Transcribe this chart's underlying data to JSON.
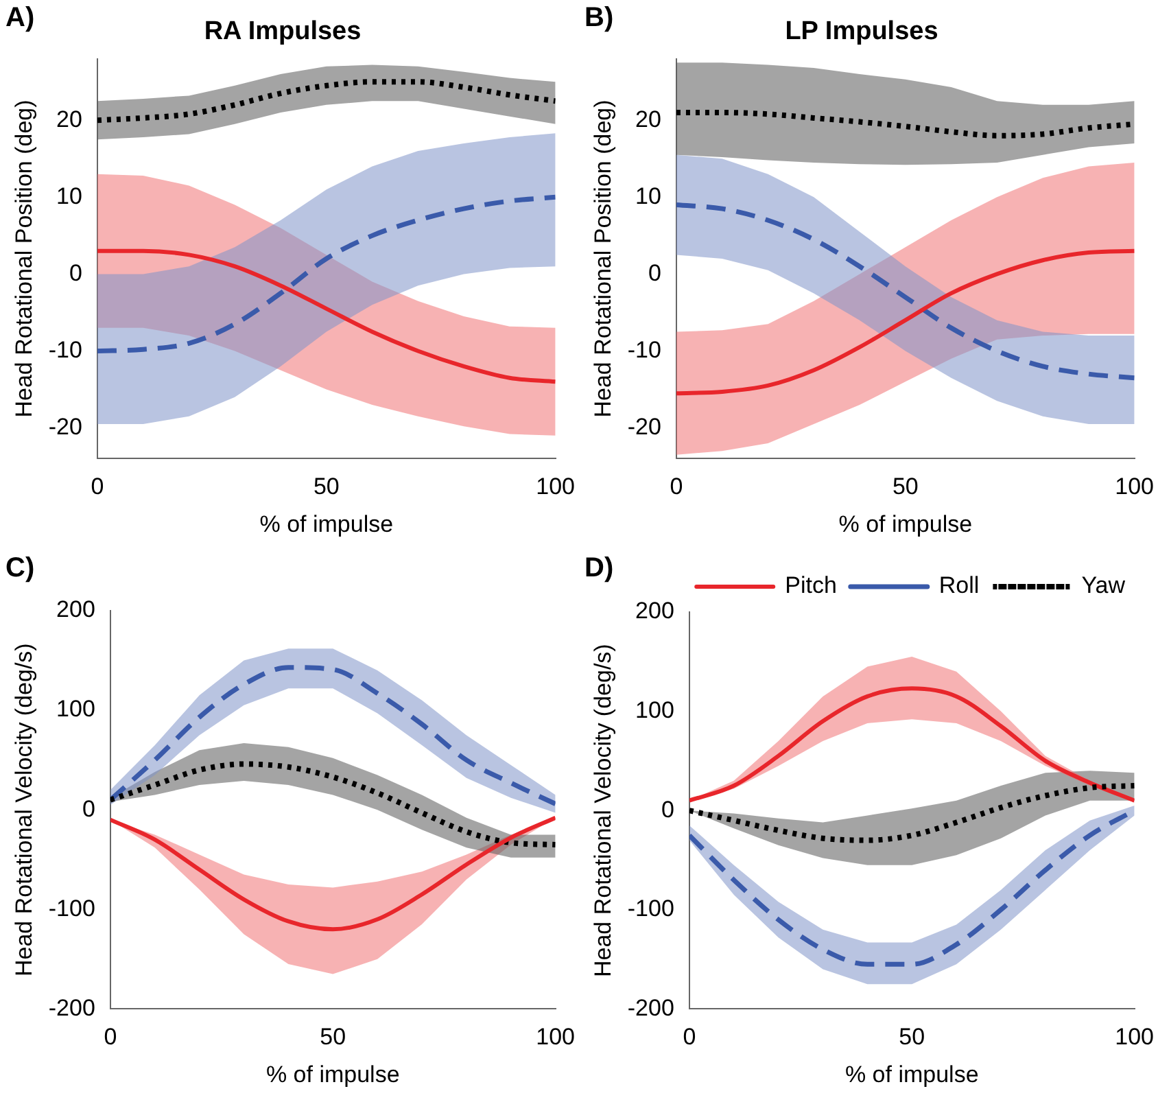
{
  "chart_data": [
    {
      "type": "line",
      "title": "RA Impulses",
      "annotations": [
        "A)"
      ],
      "xlabel": "% of impulse",
      "ylabel": "Head Rotational Position (deg)",
      "x": [
        0,
        10,
        20,
        30,
        40,
        50,
        60,
        70,
        80,
        90,
        100
      ],
      "xlim": [
        0,
        100
      ],
      "xticks": [
        0,
        50,
        100
      ],
      "ylim": [
        -24,
        28
      ],
      "yticks": [
        -20,
        -10,
        0,
        10,
        20
      ],
      "grid": false,
      "legend": false,
      "marker": "none",
      "series": [
        {
          "color": "#000000",
          "line_style": "dotted",
          "values": [
            20,
            20.3,
            20.8,
            22,
            23.5,
            24.5,
            25,
            25,
            24.3,
            23.3,
            22.5
          ],
          "upper": [
            22.5,
            22.8,
            23.2,
            24.5,
            26,
            27,
            27.2,
            27,
            26.3,
            25.5,
            25
          ],
          "lower": [
            17.5,
            17.8,
            18.2,
            19.5,
            21,
            22,
            22.5,
            22.5,
            21.5,
            20.5,
            19.5
          ]
        },
        {
          "color": "#3a5aaa",
          "line_style": "dashed",
          "values": [
            -10,
            -9.8,
            -9,
            -6.5,
            -2.5,
            2,
            5,
            7,
            8.5,
            9.5,
            10
          ],
          "upper": [
            0,
            0,
            1,
            3.5,
            7,
            11,
            14,
            16,
            17,
            17.8,
            18.3
          ],
          "lower": [
            -19.5,
            -19.5,
            -18.5,
            -16,
            -12,
            -7.5,
            -4,
            -1.5,
            0,
            0.8,
            1
          ]
        },
        {
          "color": "#e8262b",
          "line_style": "solid",
          "values": [
            3,
            3,
            2.5,
            1,
            -1.5,
            -4.5,
            -7.5,
            -10,
            -12,
            -13.5,
            -14
          ],
          "upper": [
            13,
            12.8,
            11.5,
            9,
            6,
            2.5,
            -1,
            -3.5,
            -5.5,
            -6.8,
            -7
          ],
          "lower": [
            -7,
            -7,
            -8,
            -10,
            -12.5,
            -15,
            -17,
            -18.5,
            -19.8,
            -20.8,
            -21
          ]
        }
      ]
    },
    {
      "type": "line",
      "title": "LP Impulses",
      "annotations": [
        "B)"
      ],
      "xlabel": "% of impulse",
      "ylabel": "Head Rotational Position (deg)",
      "x": [
        0,
        10,
        20,
        30,
        40,
        50,
        60,
        70,
        80,
        90,
        100
      ],
      "xlim": [
        0,
        100
      ],
      "xticks": [
        0,
        50,
        100
      ],
      "ylim": [
        -24,
        28
      ],
      "yticks": [
        -20,
        -10,
        0,
        10,
        20
      ],
      "grid": false,
      "legend": false,
      "marker": "none",
      "series": [
        {
          "color": "#000000",
          "line_style": "dotted",
          "values": [
            21,
            21,
            20.8,
            20.3,
            19.8,
            19.2,
            18.5,
            18,
            18.2,
            19,
            19.5
          ],
          "upper": [
            27.5,
            27.5,
            27.2,
            26.8,
            26,
            25.3,
            24.3,
            22.5,
            22,
            22,
            22.5
          ],
          "lower": [
            15.5,
            15.2,
            14.8,
            14.5,
            14.3,
            14.2,
            14.3,
            14.5,
            15.5,
            16.5,
            17
          ]
        },
        {
          "color": "#3a5aaa",
          "line_style": "dashed",
          "values": [
            9,
            8.5,
            7,
            4.5,
            1,
            -3,
            -7,
            -10,
            -12,
            -13,
            -13.5
          ],
          "upper": [
            15.5,
            15,
            13,
            10,
            5.5,
            1,
            -3,
            -6,
            -7.5,
            -8,
            -8
          ],
          "lower": [
            2.5,
            2,
            0.5,
            -2.5,
            -6,
            -10,
            -13.5,
            -16.5,
            -18.5,
            -19.5,
            -19.5
          ]
        },
        {
          "color": "#e8262b",
          "line_style": "solid",
          "values": [
            -15.5,
            -15.3,
            -14.5,
            -12.5,
            -9.5,
            -6,
            -2.5,
            0,
            1.8,
            2.8,
            3
          ],
          "upper": [
            -7.5,
            -7.3,
            -6.5,
            -3.5,
            0,
            3.5,
            7,
            10,
            12.5,
            14,
            14.5
          ],
          "lower": [
            -23.5,
            -23,
            -22,
            -19.5,
            -17,
            -14,
            -11,
            -8.5,
            -8,
            -7.8,
            -7.8
          ]
        }
      ]
    },
    {
      "type": "line",
      "annotations": [
        "C)"
      ],
      "xlabel": "% of impulse",
      "ylabel": "Head Rotational Velocity (deg/s)",
      "x": [
        0,
        10,
        20,
        30,
        40,
        50,
        60,
        70,
        80,
        90,
        100
      ],
      "xlim": [
        0,
        100
      ],
      "xticks": [
        0,
        50,
        100
      ],
      "ylim": [
        -200,
        200
      ],
      "yticks": [
        -200,
        -100,
        0,
        100,
        200
      ],
      "grid": false,
      "legend": false,
      "marker": "none",
      "series": [
        {
          "color": "#3a5aaa",
          "line_style": "dashed",
          "values": [
            10,
            50,
            93,
            126,
            143,
            141,
            117,
            86,
            50,
            27,
            6
          ],
          "upper": [
            20,
            65,
            115,
            150,
            162,
            162,
            140,
            110,
            75,
            45,
            15
          ],
          "lower": [
            5,
            35,
            75,
            105,
            122,
            122,
            97,
            65,
            32,
            12,
            -3
          ]
        },
        {
          "color": "#000000",
          "line_style": "dotted",
          "values": [
            10,
            25,
            40,
            46,
            43,
            33,
            17,
            -3,
            -22,
            -33,
            -35
          ],
          "upper": [
            12,
            38,
            60,
            67,
            63,
            52,
            35,
            15,
            -8,
            -25,
            -25
          ],
          "lower": [
            8,
            15,
            25,
            29,
            25,
            15,
            0,
            -20,
            -38,
            -48,
            -48
          ]
        },
        {
          "color": "#e8262b",
          "line_style": "solid",
          "values": [
            -10,
            -30,
            -60,
            -90,
            -112,
            -120,
            -110,
            -85,
            -55,
            -28,
            -8
          ],
          "upper": [
            -10,
            -25,
            -45,
            -65,
            -75,
            -78,
            -72,
            -62,
            -45,
            -25,
            -8
          ],
          "lower": [
            -10,
            -38,
            -80,
            -125,
            -155,
            -165,
            -150,
            -115,
            -70,
            -35,
            -8
          ]
        }
      ]
    },
    {
      "type": "line",
      "annotations": [
        "D)"
      ],
      "xlabel": "% of impulse",
      "ylabel": "Head Rotational Velocity (deg/s)",
      "x": [
        0,
        10,
        20,
        30,
        40,
        50,
        60,
        70,
        80,
        90,
        100
      ],
      "xlim": [
        0,
        100
      ],
      "xticks": [
        0,
        50,
        100
      ],
      "ylim": [
        -200,
        200
      ],
      "yticks": [
        -200,
        -100,
        0,
        100,
        200
      ],
      "grid": false,
      "legend": "top right",
      "marker": "none",
      "series": [
        {
          "name": "Pitch",
          "color": "#e8262b",
          "line_style": "solid",
          "values": [
            10,
            25,
            55,
            90,
            115,
            123,
            115,
            85,
            50,
            28,
            10
          ],
          "upper": [
            10,
            30,
            70,
            115,
            145,
            155,
            140,
            100,
            55,
            30,
            12
          ],
          "lower": [
            10,
            22,
            45,
            70,
            88,
            92,
            88,
            70,
            45,
            25,
            8
          ]
        },
        {
          "name": "Roll",
          "color": "#3a5aaa",
          "line_style": "dashed",
          "values": [
            -25,
            -70,
            -110,
            -140,
            -155,
            -155,
            -135,
            -100,
            -60,
            -25,
            0
          ],
          "upper": [
            -15,
            -55,
            -92,
            -120,
            -133,
            -133,
            -115,
            -80,
            -40,
            -10,
            5
          ],
          "lower": [
            -30,
            -85,
            -128,
            -160,
            -175,
            -175,
            -155,
            -120,
            -80,
            -40,
            -5
          ]
        },
        {
          "name": "Yaw",
          "color": "#000000",
          "line_style": "dotted",
          "values": [
            0,
            -10,
            -20,
            -28,
            -30,
            -25,
            -12,
            3,
            15,
            23,
            25
          ],
          "upper": [
            0,
            -3,
            -8,
            -12,
            -5,
            2,
            10,
            25,
            38,
            40,
            38
          ],
          "lower": [
            0,
            -18,
            -35,
            -48,
            -55,
            -55,
            -45,
            -28,
            -5,
            10,
            10
          ]
        }
      ]
    }
  ]
}
